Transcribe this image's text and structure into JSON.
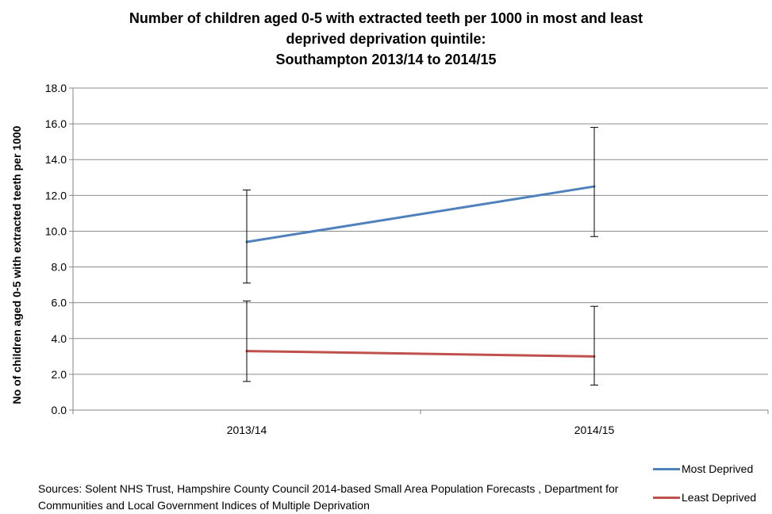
{
  "chart_data": {
    "type": "line",
    "title_lines": [
      "Number of children aged 0-5 with extracted teeth per 1000 in most and least",
      "deprived deprivation quintile:",
      "Southampton 2013/14 to 2014/15"
    ],
    "categories": [
      "2013/14",
      "2014/15"
    ],
    "series": [
      {
        "name": "Most Deprived",
        "color": "#4f81bd",
        "values": [
          9.4,
          12.5
        ],
        "err_low": [
          7.1,
          9.7
        ],
        "err_high": [
          12.3,
          15.8
        ]
      },
      {
        "name": "Least Deprived",
        "color": "#c0504d",
        "values": [
          3.3,
          3.0
        ],
        "err_low": [
          1.6,
          1.4
        ],
        "err_high": [
          6.1,
          5.8
        ]
      }
    ],
    "xlabel": "",
    "ylabel": "No of children aged 0-5 with extracted teeth per 1000",
    "ylim": [
      0,
      18
    ],
    "y_ticks": [
      "0.0",
      "2.0",
      "4.0",
      "6.0",
      "8.0",
      "10.0",
      "12.0",
      "14.0",
      "16.0",
      "18.0"
    ],
    "grid": true,
    "legend_position": "bottom-right"
  },
  "sources_text": "Sources: Solent NHS Trust,  Hampshire County Council 2014-based Small Area Population Forecasts , Department for Communities and Local Government Indices of Multiple Deprivation"
}
